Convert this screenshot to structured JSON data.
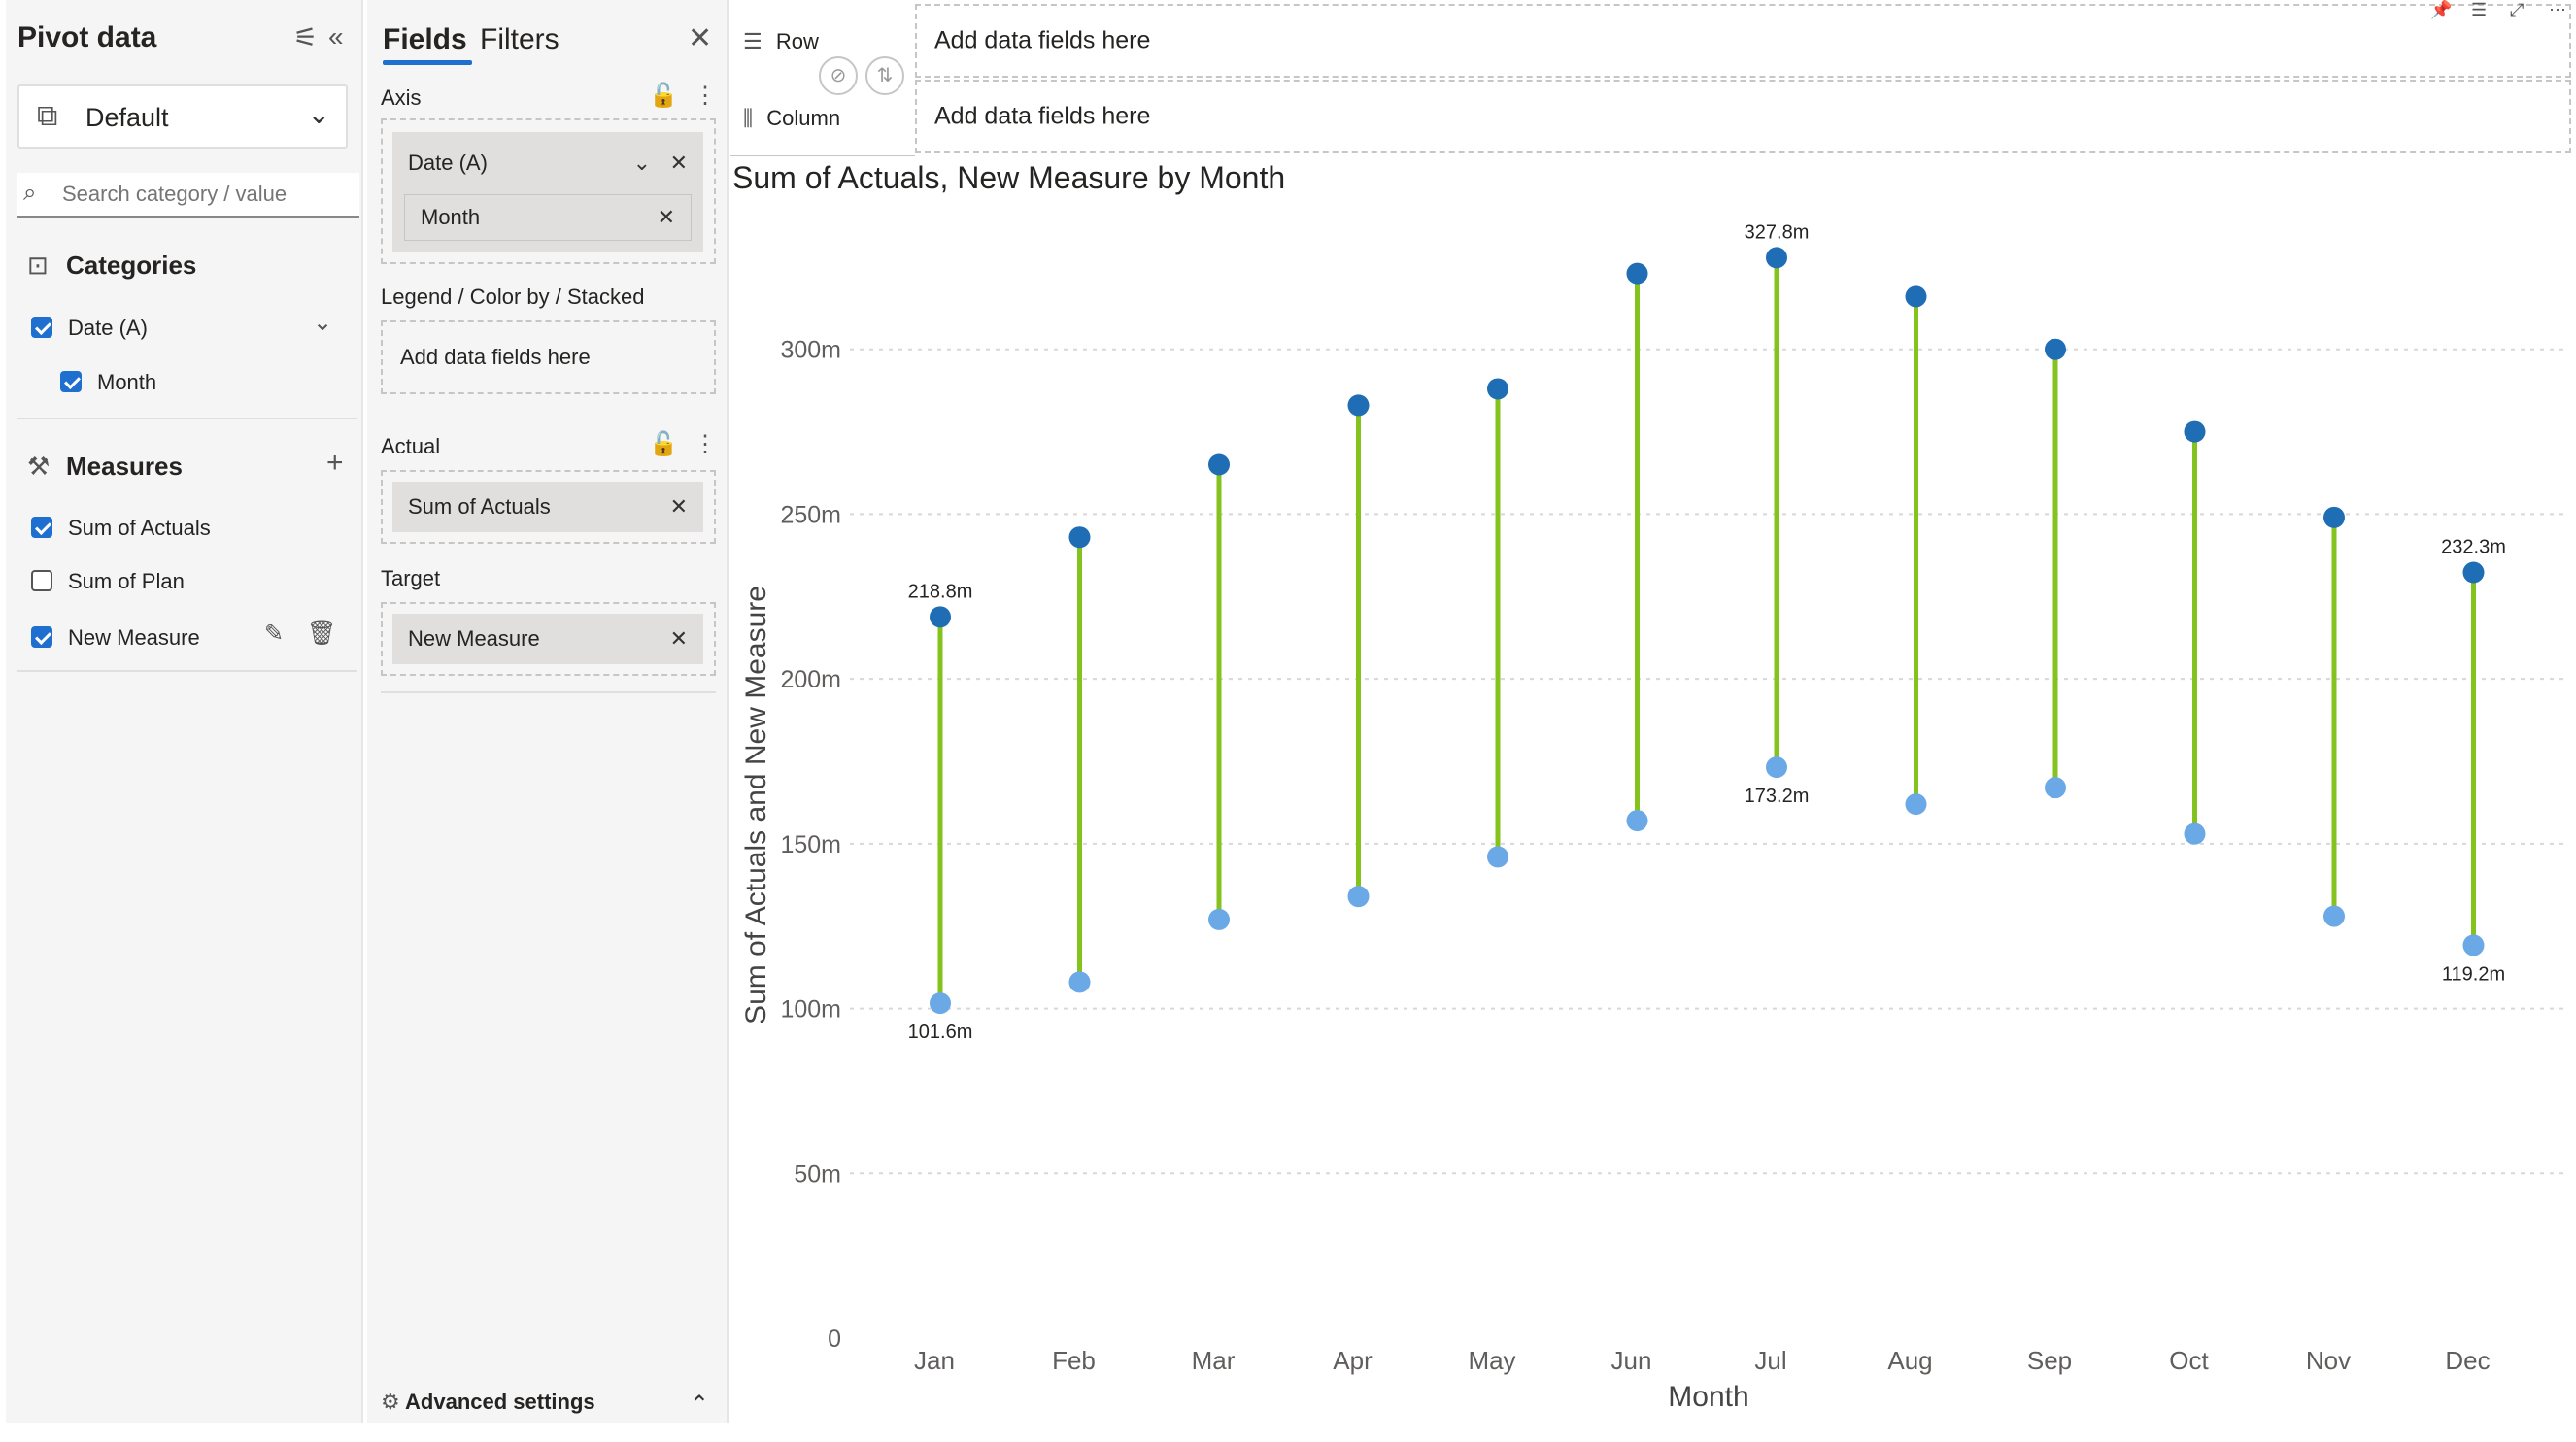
{
  "pivot": {
    "title": "Pivot data",
    "settings_icon": "sliders-icon",
    "collapse_icon": "double-chevron-left-icon",
    "preset": "Default",
    "search_placeholder": "Search category / value",
    "categories_label": "Categories",
    "categories": [
      {
        "label": "Date (A)",
        "checked": true
      },
      {
        "label": "Month",
        "checked": true
      }
    ],
    "measures_label": "Measures",
    "measures": [
      {
        "label": "Sum of Actuals",
        "checked": true
      },
      {
        "label": "Sum of Plan",
        "checked": false
      },
      {
        "label": "New Measure",
        "checked": true
      }
    ]
  },
  "fields": {
    "tabs": [
      "Fields",
      "Filters"
    ],
    "axis_label": "Axis",
    "axis_chip": "Date (A)",
    "axis_sub_chip": "Month",
    "legend_label": "Legend / Color by / Stacked",
    "add_placeholder": "Add data fields here",
    "actual_label": "Actual",
    "actual_chip": "Sum of Actuals",
    "target_label": "Target",
    "target_chip": "New Measure",
    "advanced": "Advanced settings"
  },
  "rowcol": {
    "row_label": "Row",
    "column_label": "Column",
    "row_placeholder": "Add data fields here",
    "column_placeholder": "Add data fields here"
  },
  "colors": {
    "actual": "#1f6db5",
    "target": "#6aa9e6",
    "connector": "#84c21d"
  },
  "chart_data": {
    "type": "dumbbell",
    "title": "Sum of Actuals, New Measure by Month",
    "xlabel": "Month",
    "ylabel": "Sum of Actuals and New Measure",
    "categories": [
      "Jan",
      "Feb",
      "Mar",
      "Apr",
      "May",
      "Jun",
      "Jul",
      "Aug",
      "Sep",
      "Oct",
      "Nov",
      "Dec"
    ],
    "series": [
      {
        "name": "Sum of Actuals",
        "values": [
          218.8,
          243,
          265,
          283,
          288,
          323,
          327.8,
          316,
          300,
          275,
          249,
          232.3
        ]
      },
      {
        "name": "New Measure",
        "values": [
          101.6,
          108,
          127,
          134,
          146,
          157,
          173.2,
          162,
          167,
          153,
          128,
          119.2
        ]
      }
    ],
    "data_labels": [
      {
        "category": "Jan",
        "series": "Sum of Actuals",
        "text": "218.8m"
      },
      {
        "category": "Jan",
        "series": "New Measure",
        "text": "101.6m"
      },
      {
        "category": "Jul",
        "series": "Sum of Actuals",
        "text": "327.8m"
      },
      {
        "category": "Jul",
        "series": "New Measure",
        "text": "173.2m"
      },
      {
        "category": "Dec",
        "series": "Sum of Actuals",
        "text": "232.3m"
      },
      {
        "category": "Dec",
        "series": "New Measure",
        "text": "119.2m"
      }
    ],
    "yticks": [
      "0",
      "50m",
      "100m",
      "150m",
      "200m",
      "250m",
      "300m"
    ],
    "ylim": [
      0,
      350
    ],
    "grid": true
  }
}
